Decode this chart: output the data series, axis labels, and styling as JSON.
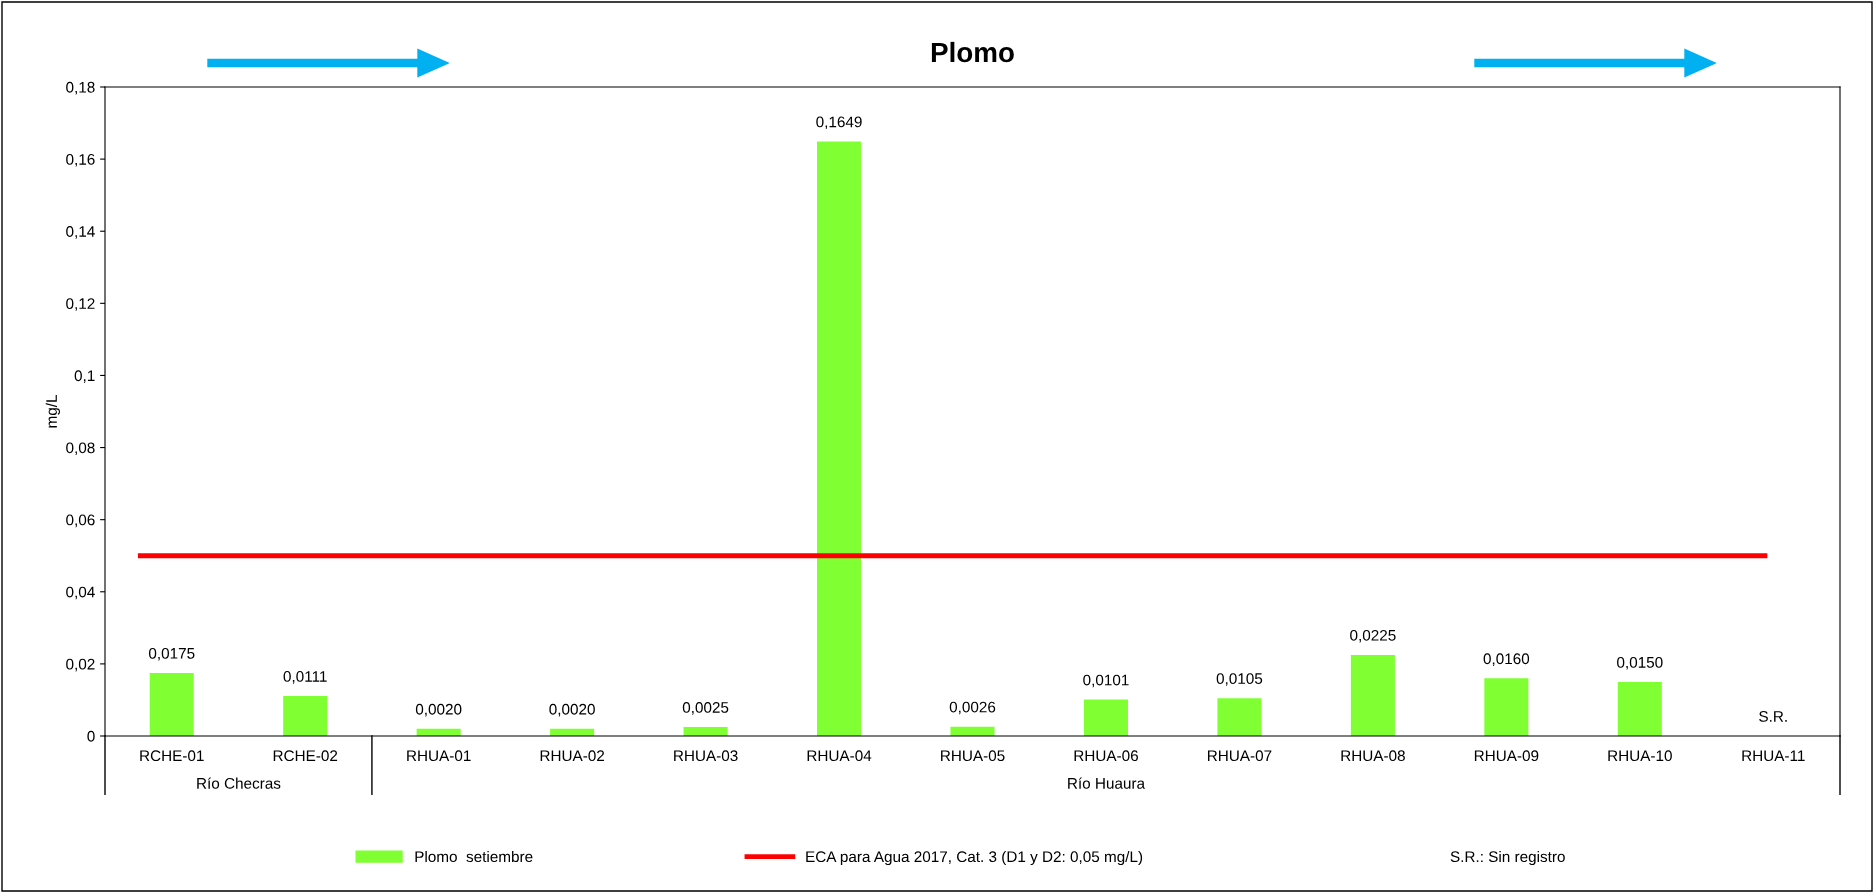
{
  "chart_data": {
    "type": "bar",
    "title": "Plomo",
    "ylabel": "mg/L",
    "categories": [
      "RCHE-01",
      "RCHE-02",
      "RHUA-01",
      "RHUA-02",
      "RHUA-03",
      "RHUA-04",
      "RHUA-05",
      "RHUA-06",
      "RHUA-07",
      "RHUA-08",
      "RHUA-09",
      "RHUA-10",
      "RHUA-11"
    ],
    "series": [
      {
        "name": "Plomo  setiembre",
        "color": "#80ff33",
        "values": [
          0.0175,
          0.0111,
          0.002,
          0.002,
          0.0025,
          0.1649,
          0.0026,
          0.0101,
          0.0105,
          0.0225,
          0.016,
          0.015,
          null
        ],
        "value_labels": [
          "0,0175",
          "0,0111",
          "0,0020",
          "0,0020",
          "0,0025",
          "0,1649",
          "0,0026",
          "0,0101",
          "0,0105",
          "0,0225",
          "0,0160",
          "0,0150",
          "S.R."
        ]
      }
    ],
    "ylim": [
      0,
      0.18
    ],
    "yticks": [
      0,
      {
        "value": 0.02,
        "label": "0,02"
      },
      {
        "value": 0.04,
        "label": "0,04"
      },
      {
        "value": 0.06,
        "label": "0,06"
      },
      {
        "value": 0.08,
        "label": "0,08"
      },
      {
        "value": 0.1,
        "label": "0,1"
      },
      {
        "value": 0.12,
        "label": "0,12"
      },
      {
        "value": 0.14,
        "label": "0,14"
      },
      {
        "value": 0.16,
        "label": "0,16"
      },
      {
        "value": 0.18,
        "label": "0,18"
      }
    ],
    "ref_lines": [
      {
        "axis": "y",
        "value": 0.05,
        "label": "ECA para Agua 2017, Cat. 3 (D1 y D2: 0,05 mg/L)",
        "color": "#ff0000"
      }
    ],
    "annotations": [
      "Río Checras",
      "Río Huaura",
      "S.R.: Sin registro"
    ],
    "grid": false,
    "legend": "bottom"
  }
}
